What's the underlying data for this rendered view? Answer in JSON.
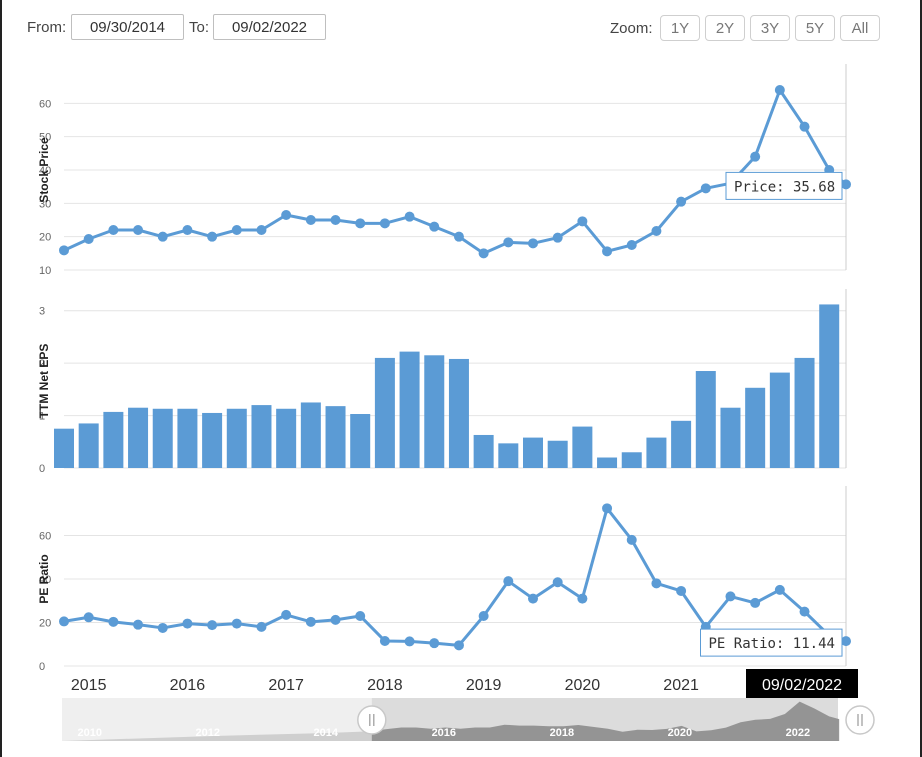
{
  "range": {
    "from_label": "From:",
    "from_value": "09/30/2014",
    "to_label": "To:",
    "to_value": "09/02/2022"
  },
  "zoom": {
    "label": "Zoom:",
    "buttons": [
      "1Y",
      "2Y",
      "3Y",
      "5Y",
      "All"
    ]
  },
  "colors": {
    "series": "#5b9bd5",
    "grid": "#e4e4e4",
    "badge": "#000000",
    "navigator_fill": "#8c8c8c",
    "navigator_bg": "#dcdcdc"
  },
  "chart_data": [
    {
      "type": "line",
      "name": "stock-price",
      "ylabel": "Stock Price",
      "ylim": [
        10,
        70
      ],
      "yticks": [
        10,
        20,
        30,
        40,
        50,
        60
      ],
      "x": [
        2014.75,
        2015.0,
        2015.25,
        2015.5,
        2015.75,
        2016.0,
        2016.25,
        2016.5,
        2016.75,
        2017.0,
        2017.25,
        2017.5,
        2017.75,
        2018.0,
        2018.25,
        2018.5,
        2018.75,
        2019.0,
        2019.25,
        2019.5,
        2019.75,
        2020.0,
        2020.25,
        2020.5,
        2020.75,
        2021.0,
        2021.25,
        2021.5,
        2021.75,
        2022.0,
        2022.25,
        2022.5,
        2022.67
      ],
      "values": [
        15.9,
        19.3,
        22.0,
        22.0,
        20.0,
        22.0,
        20.0,
        22.0,
        22.0,
        26.5,
        25.0,
        25.0,
        24.0,
        24.0,
        26.0,
        23.0,
        20.0,
        15.0,
        18.3,
        18.0,
        19.7,
        24.6,
        15.6,
        17.5,
        21.7,
        30.5,
        34.5,
        36.0,
        44.0,
        64.0,
        53.0,
        40.0,
        35.68
      ],
      "tooltip": "Price: 35.68",
      "grid": true
    },
    {
      "type": "bar",
      "name": "ttm-net-eps",
      "ylabel": "TTM Net EPS",
      "ylim": [
        0,
        3.3
      ],
      "yticks": [
        0,
        1,
        2,
        3
      ],
      "x": [
        2014.75,
        2015.0,
        2015.25,
        2015.5,
        2015.75,
        2016.0,
        2016.25,
        2016.5,
        2016.75,
        2017.0,
        2017.25,
        2017.5,
        2017.75,
        2018.0,
        2018.25,
        2018.5,
        2018.75,
        2019.0,
        2019.25,
        2019.5,
        2019.75,
        2020.0,
        2020.25,
        2020.5,
        2020.75,
        2021.0,
        2021.25,
        2021.5,
        2021.75,
        2022.0,
        2022.25,
        2022.5
      ],
      "values": [
        0.75,
        0.85,
        1.07,
        1.15,
        1.13,
        1.13,
        1.05,
        1.13,
        1.2,
        1.13,
        1.25,
        1.18,
        1.03,
        2.1,
        2.22,
        2.15,
        2.08,
        0.63,
        0.47,
        0.58,
        0.52,
        0.79,
        0.2,
        0.3,
        0.58,
        0.9,
        1.85,
        1.15,
        1.53,
        1.82,
        2.1,
        3.12
      ],
      "grid": true
    },
    {
      "type": "line",
      "name": "pe-ratio",
      "ylabel": "PE Ratio",
      "ylim": [
        0,
        80
      ],
      "yticks": [
        0,
        20,
        40,
        60
      ],
      "x": [
        2014.75,
        2015.0,
        2015.25,
        2015.5,
        2015.75,
        2016.0,
        2016.25,
        2016.5,
        2016.75,
        2017.0,
        2017.25,
        2017.5,
        2017.75,
        2018.0,
        2018.25,
        2018.5,
        2018.75,
        2019.0,
        2019.25,
        2019.5,
        2019.75,
        2020.0,
        2020.25,
        2020.5,
        2020.75,
        2021.0,
        2021.25,
        2021.5,
        2021.75,
        2022.0,
        2022.25,
        2022.5,
        2022.67
      ],
      "values": [
        20.5,
        22.4,
        20.3,
        19.0,
        17.5,
        19.5,
        18.8,
        19.5,
        18.0,
        23.5,
        20.3,
        21.2,
        23.0,
        11.5,
        11.3,
        10.5,
        9.5,
        23.0,
        39.0,
        31.0,
        38.5,
        31.0,
        72.5,
        58.0,
        38.0,
        34.5,
        18.0,
        32.0,
        29.0,
        35.0,
        25.0,
        14.0,
        11.44
      ],
      "tooltip": "PE Ratio: 11.44",
      "grid": true
    }
  ],
  "x_axis": {
    "ticks": [
      2015,
      2016,
      2017,
      2018,
      2019,
      2020,
      2021
    ],
    "tick_labels": [
      "2015",
      "2016",
      "2017",
      "2018",
      "2019",
      "2020",
      "2021"
    ],
    "range": [
      2014.75,
      2022.67
    ],
    "current_date": "09/02/2022"
  },
  "navigator": {
    "tick_labels": [
      "2010",
      "2012",
      "2014",
      "2016",
      "2018",
      "2020",
      "2022"
    ],
    "ticks": [
      2010,
      2012,
      2014,
      2016,
      2018,
      2020,
      2022
    ],
    "range": [
      2009.5,
      2022.65
    ],
    "selection": [
      2014.75,
      2022.67
    ],
    "handle_icon": "grip-lines-icon"
  }
}
